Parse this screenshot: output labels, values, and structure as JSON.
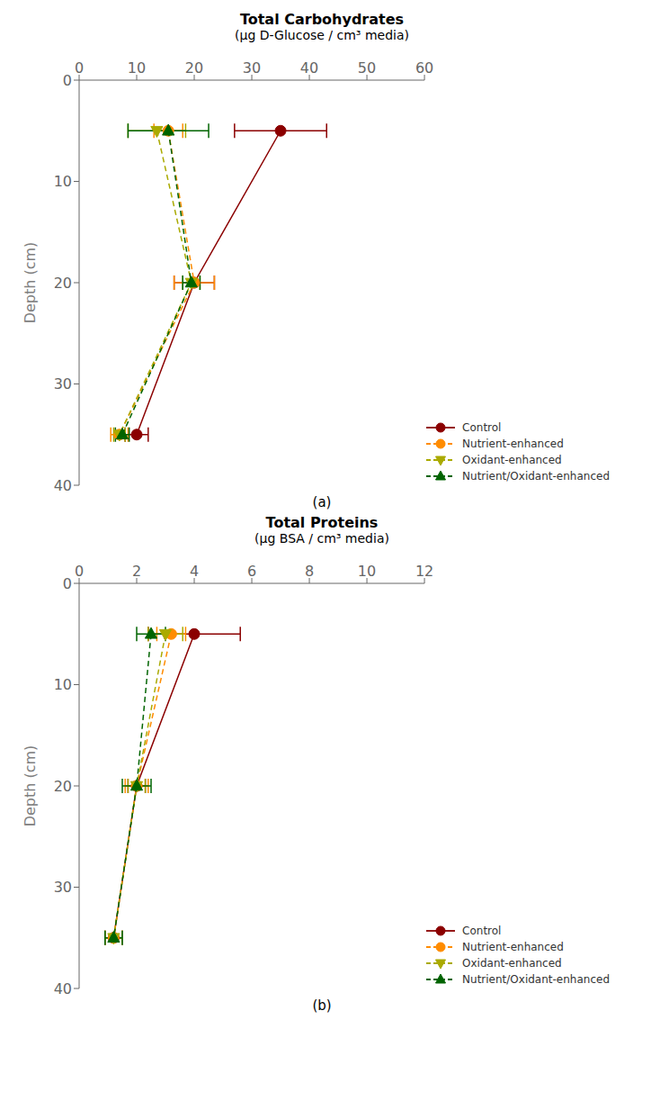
{
  "chart_data": [
    {
      "type": "line",
      "title": "Total Carbohydrates",
      "subtitle": "(μg D-Glucose / cm³ media)",
      "annotations": [
        "(a)"
      ],
      "y_label": "Depth (cm)",
      "xlim": [
        0,
        60
      ],
      "xticks": [
        0,
        10,
        20,
        30,
        40,
        50,
        60
      ],
      "ylim": [
        40,
        0
      ],
      "yticks": [
        0,
        10,
        20,
        30,
        40
      ],
      "grid": false,
      "legend": "lower right",
      "y": [
        5,
        20,
        35
      ],
      "series": [
        {
          "name": "Control",
          "color": "#8B0000",
          "line_style": "solid",
          "marker": "circle",
          "values": [
            35.0,
            20.0,
            10.0
          ],
          "xerr": [
            8.0,
            3.5,
            2.0
          ]
        },
        {
          "name": "Nutrient-enhanced",
          "color": "#FF8C00",
          "line_style": "dashed",
          "marker": "circle",
          "values": [
            15.5,
            20.0,
            7.0
          ],
          "xerr": [
            2.5,
            3.5,
            1.5
          ]
        },
        {
          "name": "Oxidant-enhanced",
          "color": "#AAAA00",
          "line_style": "dashed",
          "marker": "triangle-down",
          "values": [
            13.5,
            19.5,
            7.0
          ],
          "xerr": [
            5.0,
            1.5,
            1.0
          ]
        },
        {
          "name": "Nutrient/Oxidant-enhanced",
          "color": "#006400",
          "line_style": "dashed",
          "marker": "triangle-up",
          "values": [
            15.5,
            19.5,
            7.5
          ],
          "xerr": [
            7.0,
            1.5,
            1.2
          ]
        }
      ]
    },
    {
      "type": "line",
      "title": "Total Proteins",
      "subtitle": "(μg BSA / cm³ media)",
      "annotations": [
        "(b)"
      ],
      "y_label": "Depth (cm)",
      "xlim": [
        0,
        12
      ],
      "xticks": [
        0,
        2,
        4,
        6,
        8,
        10,
        12
      ],
      "ylim": [
        40,
        0
      ],
      "yticks": [
        0,
        10,
        20,
        30,
        40
      ],
      "grid": false,
      "legend": "lower right",
      "y": [
        5,
        20,
        35
      ],
      "series": [
        {
          "name": "Control",
          "color": "#8B0000",
          "line_style": "solid",
          "marker": "circle",
          "values": [
            4.0,
            2.0,
            1.2
          ],
          "xerr": [
            1.6,
            0.3,
            0.3
          ]
        },
        {
          "name": "Nutrient-enhanced",
          "color": "#FF8C00",
          "line_style": "dashed",
          "marker": "circle",
          "values": [
            3.2,
            2.0,
            1.2
          ],
          "xerr": [
            0.5,
            0.4,
            0.3
          ]
        },
        {
          "name": "Oxidant-enhanced",
          "color": "#AAAA00",
          "line_style": "dashed",
          "marker": "triangle-down",
          "values": [
            3.0,
            2.0,
            1.2
          ],
          "xerr": [
            0.6,
            0.3,
            0.3
          ]
        },
        {
          "name": "Nutrient/Oxidant-enhanced",
          "color": "#006400",
          "line_style": "dashed",
          "marker": "triangle-up",
          "values": [
            2.5,
            2.0,
            1.2
          ],
          "xerr": [
            0.5,
            0.5,
            0.3
          ]
        }
      ]
    }
  ]
}
